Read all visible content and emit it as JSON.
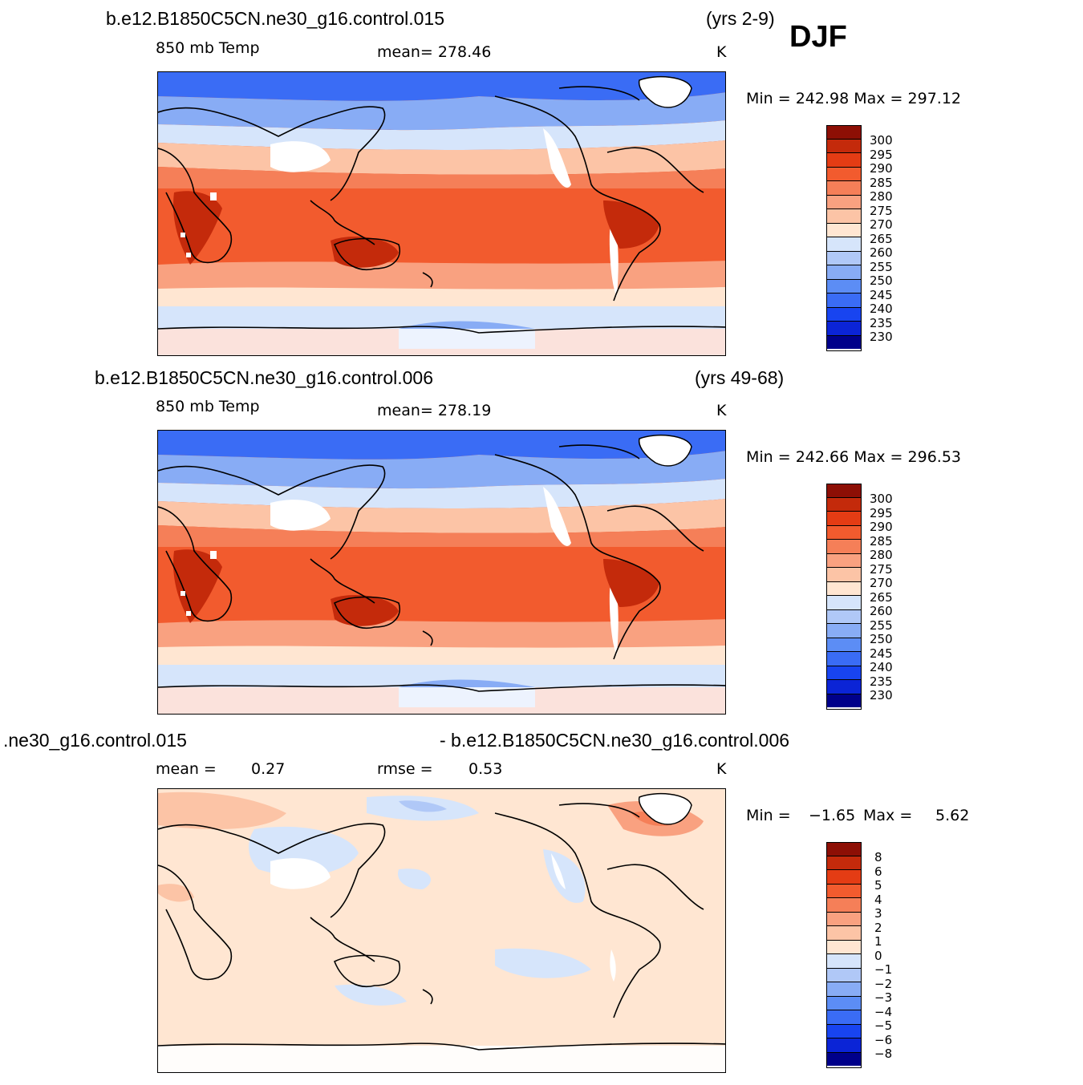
{
  "header": {
    "season": "DJF"
  },
  "colors": {
    "temp_scale": [
      "#00008a",
      "#0000b8",
      "#0b24d6",
      "#1844f0",
      "#3a6cf5",
      "#5c8df5",
      "#88acf5",
      "#b0c8f7",
      "#d6e5fb",
      "#ffe6d2",
      "#fcc4a6",
      "#f9a180",
      "#f57f58",
      "#f25b2e",
      "#e43c14",
      "#c42a0b",
      "#8d0f05"
    ],
    "diff_scale": [
      "#00008a",
      "#0000b8",
      "#0b24d6",
      "#1844f0",
      "#3a6cf5",
      "#5c8df5",
      "#88acf5",
      "#b0c8f7",
      "#d6e5fb",
      "#ffe6d2",
      "#fcc4a6",
      "#f9a180",
      "#f57f58",
      "#f25b2e",
      "#e43c14",
      "#c42a0b",
      "#8d0f05"
    ]
  },
  "panels": [
    {
      "case": "b.e12.B1850C5CN.ne30_g16.control.015",
      "years": "(yrs 2-9)",
      "variable": "850 mb Temp",
      "stat1": "mean= 278.46",
      "units": "K",
      "minmax": "Min = 242.98 Max = 297.12",
      "levels": [
        "300",
        "295",
        "290",
        "285",
        "280",
        "275",
        "270",
        "265",
        "260",
        "255",
        "250",
        "245",
        "240",
        "235",
        "230"
      ]
    },
    {
      "case": "b.e12.B1850C5CN.ne30_g16.control.006",
      "years": "(yrs 49-68)",
      "variable": "850 mb Temp",
      "stat1": "mean= 278.19",
      "units": "K",
      "minmax": "Min = 242.66 Max = 296.53",
      "levels": [
        "300",
        "295",
        "290",
        "285",
        "280",
        "275",
        "270",
        "265",
        "260",
        "255",
        "250",
        "245",
        "240",
        "235",
        "230"
      ]
    },
    {
      "case_left": ".ne30_g16.control.015",
      "case_right": "- b.e12.B1850C5CN.ne30_g16.control.006",
      "mean_label": "mean =",
      "mean_value": "0.27",
      "rmse_label": "rmse =",
      "rmse_value": "0.53",
      "units": "K",
      "min_label": "Min =",
      "min_value": "−1.65",
      "max_label": "Max =",
      "max_value": "5.62",
      "levels": [
        "8",
        "6",
        "5",
        "4",
        "3",
        "2",
        "1",
        "0",
        "−1",
        "−2",
        "−3",
        "−4",
        "−5",
        "−6",
        "−8"
      ]
    }
  ]
}
